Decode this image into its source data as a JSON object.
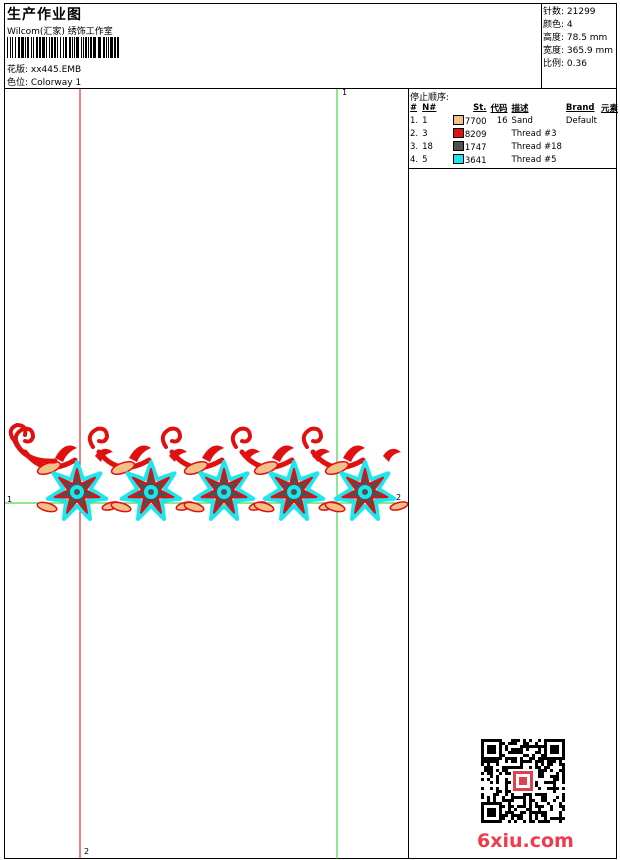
{
  "header": {
    "title": "生产作业图",
    "studio": "Wilcom(汇家) 绣饰工作室",
    "design_file": "花版: xx445.EMB",
    "colorway": "色位: Colorway 1"
  },
  "stats": {
    "stitches": "针数: 21299",
    "colors": "颜色: 4",
    "height": "高度: 78.5 mm",
    "width": "宽度: 365.9 mm",
    "scale": "比例: 0.36"
  },
  "stop_sequence": {
    "title": "停止顺序:",
    "headers": [
      "#",
      "N#",
      "St.",
      "代码",
      "描述",
      "Brand",
      "元素"
    ],
    "rows": [
      {
        "index": "1.",
        "needle": "1",
        "code": "7700",
        "stitches": "16",
        "desc": "Sand",
        "brand": "Default",
        "color": "#f5c087"
      },
      {
        "index": "2.",
        "needle": "3",
        "code": "8209",
        "stitches": "",
        "desc": "Thread #3",
        "brand": "",
        "color": "#e01010"
      },
      {
        "index": "3.",
        "needle": "18",
        "code": "1747",
        "stitches": "",
        "desc": "Thread #18",
        "brand": "",
        "color": "#505050"
      },
      {
        "index": "4.",
        "needle": "5",
        "code": "3641",
        "stitches": "",
        "desc": "Thread #5",
        "brand": "",
        "color": "#1ee6ee"
      }
    ]
  },
  "guides": {
    "v_green_top": "1",
    "v_red_bottom": "2",
    "h_left": "1",
    "h_right": "2"
  },
  "colors": {
    "guide_red": "#e00000",
    "guide_green": "#22cc22",
    "thread_sand": "#f5c087",
    "thread_red": "#e01010",
    "thread_gray": "#505050",
    "thread_cyan": "#1ee6ee",
    "watermark": "#f23a4d"
  },
  "watermark": "6xiu.com"
}
